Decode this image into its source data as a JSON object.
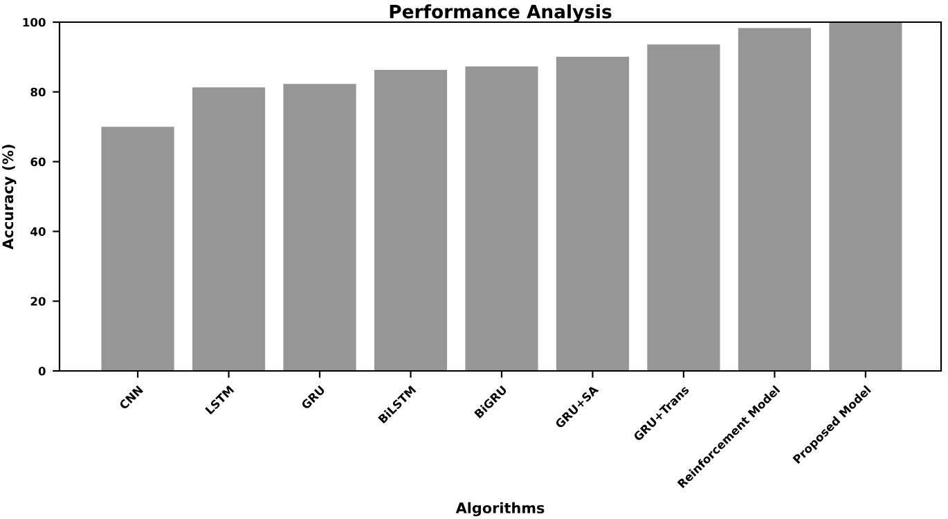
{
  "chart_data": {
    "type": "bar",
    "title": "Performance Analysis",
    "xlabel": "Algorithms",
    "ylabel": "Accuracy (%)",
    "categories": [
      "CNN",
      "LSTM",
      "GRU",
      "BiLSTM",
      "BiGRU",
      "GRU+SA",
      "GRU+Trans",
      "Reinforcement Model",
      "Proposed Model"
    ],
    "values": [
      70,
      81.3,
      82.3,
      86.3,
      87.3,
      90.1,
      93.6,
      98.3,
      100
    ],
    "color": "#969696",
    "ylim": [
      0,
      100
    ],
    "yticks": [
      0,
      20,
      40,
      60,
      80,
      100
    ],
    "grid": false
  }
}
